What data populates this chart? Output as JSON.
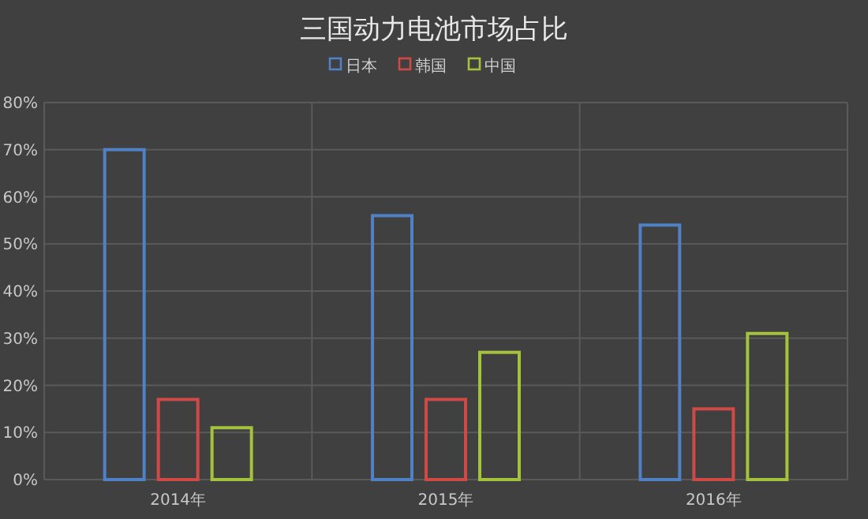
{
  "chart_data": {
    "type": "bar",
    "title": "三国动力电池市场占比",
    "categories": [
      "2014年",
      "2015年",
      "2016年"
    ],
    "series": [
      {
        "name": "日本",
        "color": "#4f81c4",
        "values": [
          70,
          56,
          54
        ]
      },
      {
        "name": "韩国",
        "color": "#cf4a47",
        "values": [
          17,
          17,
          15
        ]
      },
      {
        "name": "中国",
        "color": "#a5c23c",
        "values": [
          11,
          27,
          31
        ]
      }
    ],
    "ylim": [
      0,
      80
    ],
    "yticks": [
      {
        "value": 0,
        "label": "0%"
      },
      {
        "value": 10,
        "label": "10%"
      },
      {
        "value": 20,
        "label": "20%"
      },
      {
        "value": 30,
        "label": "30%"
      },
      {
        "value": 40,
        "label": "40%"
      },
      {
        "value": 50,
        "label": "50%"
      },
      {
        "value": 60,
        "label": "60%"
      },
      {
        "value": 70,
        "label": "70%"
      },
      {
        "value": 80,
        "label": "80%"
      }
    ],
    "grid": true,
    "legend": "top"
  }
}
